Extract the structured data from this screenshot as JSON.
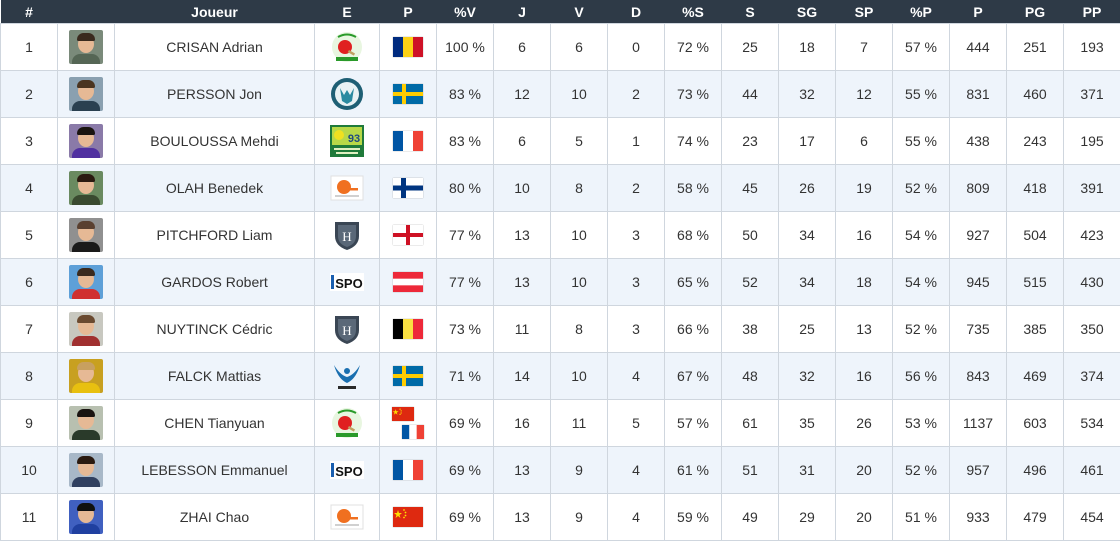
{
  "columns": [
    "#",
    "",
    "Joueur",
    "E",
    "P",
    "%V",
    "J",
    "V",
    "D",
    "%S",
    "S",
    "SG",
    "SP",
    "%P",
    "P",
    "PG",
    "PP"
  ],
  "rows": [
    {
      "rank": "1",
      "name": "CRISAN Adrian",
      "club": "la-romagne-logo",
      "flags": [
        "romania-flag"
      ],
      "pv": "100 %",
      "j": "6",
      "v": "6",
      "d": "0",
      "ps": "72 %",
      "s": "25",
      "sg": "18",
      "sp": "7",
      "pp_pct": "57 %",
      "p": "444",
      "pg": "251",
      "pp": "193"
    },
    {
      "rank": "2",
      "name": "PERSSON Jon",
      "club": "wolf-logo",
      "flags": [
        "sweden-flag"
      ],
      "pv": "83 %",
      "j": "12",
      "v": "10",
      "d": "2",
      "ps": "73 %",
      "s": "44",
      "sg": "32",
      "sp": "12",
      "pp_pct": "55 %",
      "p": "831",
      "pg": "460",
      "pp": "371"
    },
    {
      "rank": "3",
      "name": "BOULOUSSA Mehdi",
      "club": "saint-denis-93-logo",
      "flags": [
        "france-flag"
      ],
      "pv": "83 %",
      "j": "6",
      "v": "5",
      "d": "1",
      "ps": "74 %",
      "s": "23",
      "sg": "17",
      "sp": "6",
      "pp_pct": "55 %",
      "p": "438",
      "pg": "243",
      "pp": "195"
    },
    {
      "rank": "4",
      "name": "OLAH Benedek",
      "club": "paddle-logo",
      "flags": [
        "finland-flag"
      ],
      "pv": "80 %",
      "j": "10",
      "v": "8",
      "d": "2",
      "ps": "58 %",
      "s": "45",
      "sg": "26",
      "sp": "19",
      "pp_pct": "52 %",
      "p": "809",
      "pg": "418",
      "pp": "391"
    },
    {
      "rank": "5",
      "name": "PITCHFORD Liam",
      "club": "shield-logo",
      "flags": [
        "england-flag"
      ],
      "pv": "77 %",
      "j": "13",
      "v": "10",
      "d": "3",
      "ps": "68 %",
      "s": "50",
      "sg": "34",
      "sp": "16",
      "pp_pct": "54 %",
      "p": "927",
      "pg": "504",
      "pp": "423"
    },
    {
      "rank": "6",
      "name": "GARDOS Robert",
      "club": "ispo-logo",
      "flags": [
        "austria-flag"
      ],
      "pv": "77 %",
      "j": "13",
      "v": "10",
      "d": "3",
      "ps": "65 %",
      "s": "52",
      "sg": "34",
      "sp": "18",
      "pp_pct": "54 %",
      "p": "945",
      "pg": "515",
      "pp": "430"
    },
    {
      "rank": "7",
      "name": "NUYTINCK Cédric",
      "club": "shield-logo",
      "flags": [
        "belgium-flag"
      ],
      "pv": "73 %",
      "j": "11",
      "v": "8",
      "d": "3",
      "ps": "66 %",
      "s": "38",
      "sg": "25",
      "sp": "13",
      "pp_pct": "52 %",
      "p": "735",
      "pg": "385",
      "pp": "350"
    },
    {
      "rank": "8",
      "name": "FALCK Mattias",
      "club": "blue-bird-logo",
      "flags": [
        "sweden-flag"
      ],
      "pv": "71 %",
      "j": "14",
      "v": "10",
      "d": "4",
      "ps": "67 %",
      "s": "48",
      "sg": "32",
      "sp": "16",
      "pp_pct": "56 %",
      "p": "843",
      "pg": "469",
      "pp": "374"
    },
    {
      "rank": "9",
      "name": "CHEN Tianyuan",
      "club": "la-romagne-logo",
      "flags": [
        "china-flag",
        "france-flag"
      ],
      "pv": "69 %",
      "j": "16",
      "v": "11",
      "d": "5",
      "ps": "57 %",
      "s": "61",
      "sg": "35",
      "sp": "26",
      "pp_pct": "53 %",
      "p": "1137",
      "pg": "603",
      "pp": "534"
    },
    {
      "rank": "10",
      "name": "LEBESSON Emmanuel",
      "club": "ispo-logo",
      "flags": [
        "france-flag"
      ],
      "pv": "69 %",
      "j": "13",
      "v": "9",
      "d": "4",
      "ps": "61 %",
      "s": "51",
      "sg": "31",
      "sp": "20",
      "pp_pct": "52 %",
      "p": "957",
      "pg": "496",
      "pp": "461"
    },
    {
      "rank": "11",
      "name": "ZHAI Chao",
      "club": "paddle-logo",
      "flags": [
        "china-flag"
      ],
      "pv": "69 %",
      "j": "13",
      "v": "9",
      "d": "4",
      "ps": "59 %",
      "s": "49",
      "sg": "29",
      "sp": "20",
      "pp_pct": "51 %",
      "p": "933",
      "pg": "479",
      "pp": "454"
    }
  ],
  "colors": {
    "header_bg": "#2e3a47",
    "row_alt": "#eef4fb",
    "border": "#cfd6de"
  }
}
